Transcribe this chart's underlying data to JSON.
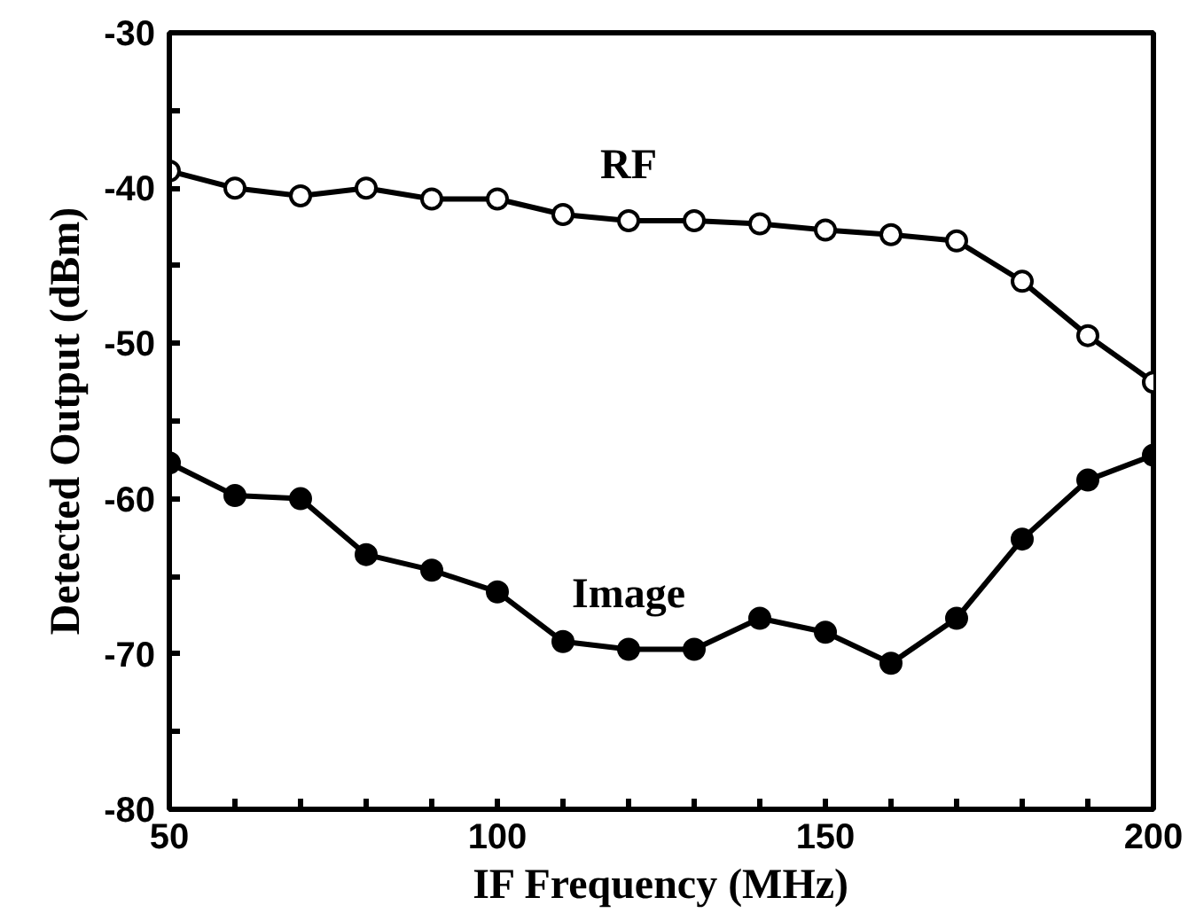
{
  "chart_data": {
    "type": "line",
    "xlabel": "IF Frequency (MHz)",
    "ylabel": "Detected Output (dBm)",
    "x": [
      50,
      60,
      70,
      80,
      90,
      100,
      110,
      120,
      130,
      140,
      150,
      160,
      170,
      180,
      190,
      200
    ],
    "series": [
      {
        "name": "RF",
        "color": "#000000",
        "marker": "open_circle",
        "values": [
          -38.9,
          -40,
          -40.5,
          -40,
          -40.7,
          -40.7,
          -41.7,
          -42.1,
          -42.1,
          -42.3,
          -42.7,
          -43,
          -43.4,
          -46,
          -49.5,
          -52.5
        ]
      },
      {
        "name": "Image",
        "color": "#000000",
        "marker": "circle",
        "values": [
          -57.7,
          -59.8,
          -60,
          -63.6,
          -64.6,
          -66,
          -69.2,
          -69.7,
          -69.7,
          -67.7,
          -68.6,
          -70.6,
          -67.7,
          -62.6,
          -58.8,
          -57.2
        ]
      }
    ],
    "xlim": [
      50,
      200
    ],
    "ylim": [
      -80,
      -30
    ],
    "xticks": [
      50,
      {
        "value": 60,
        "label": null
      },
      {
        "value": 70,
        "label": null
      },
      {
        "value": 80,
        "label": null
      },
      {
        "value": 90,
        "label": null
      },
      100,
      {
        "value": 110,
        "label": null
      },
      {
        "value": 120,
        "label": null
      },
      {
        "value": 130,
        "label": null
      },
      {
        "value": 140,
        "label": null
      },
      150,
      {
        "value": 160,
        "label": null
      },
      {
        "value": 170,
        "label": null
      },
      {
        "value": 180,
        "label": null
      },
      {
        "value": 190,
        "label": null
      },
      200
    ],
    "yticks": [
      -80,
      {
        "value": -75,
        "label": null
      },
      -70,
      {
        "value": -65,
        "label": null
      },
      -60,
      {
        "value": -55,
        "label": null
      },
      -50,
      {
        "value": -45,
        "label": null
      },
      -40,
      {
        "value": -35,
        "label": null
      },
      -30
    ],
    "grid": false,
    "line_style": "solid"
  }
}
